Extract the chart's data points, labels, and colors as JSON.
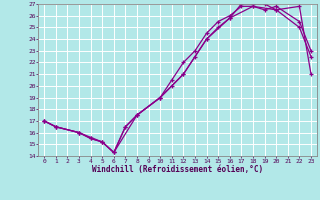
{
  "xlabel": "Windchill (Refroidissement éolien,°C)",
  "bg_color": "#b2e8e8",
  "grid_color": "#ffffff",
  "line_color": "#8b008b",
  "xlim": [
    -0.5,
    23.5
  ],
  "ylim": [
    14,
    27
  ],
  "xticks": [
    0,
    1,
    2,
    3,
    4,
    5,
    6,
    7,
    8,
    9,
    10,
    11,
    12,
    13,
    14,
    15,
    16,
    17,
    18,
    19,
    20,
    21,
    22,
    23
  ],
  "yticks": [
    14,
    15,
    16,
    17,
    18,
    19,
    20,
    21,
    22,
    23,
    24,
    25,
    26,
    27
  ],
  "line1_x": [
    0,
    1,
    3,
    4,
    5,
    6,
    7,
    8,
    10,
    11,
    12,
    13,
    14,
    15,
    16,
    17,
    18,
    19,
    20,
    22,
    23
  ],
  "line1_y": [
    17,
    16.5,
    16,
    15.5,
    15.2,
    14.3,
    16.5,
    17.5,
    19.0,
    20.0,
    21.0,
    22.5,
    24.0,
    25.0,
    25.8,
    27.0,
    27.0,
    27.0,
    26.5,
    25.0,
    22.5
  ],
  "line2_x": [
    0,
    1,
    3,
    4,
    5,
    6,
    7,
    8,
    10,
    11,
    12,
    13,
    14,
    15,
    16,
    17,
    18,
    19,
    20,
    22,
    23
  ],
  "line2_y": [
    17,
    16.5,
    16,
    15.5,
    15.2,
    14.3,
    16.5,
    17.5,
    19.0,
    20.5,
    22.0,
    23.0,
    24.5,
    25.5,
    26.0,
    26.8,
    26.8,
    26.5,
    26.8,
    25.5,
    23.0
  ],
  "line3_x": [
    0,
    1,
    3,
    5,
    6,
    8,
    10,
    12,
    14,
    16,
    18,
    20,
    22,
    23
  ],
  "line3_y": [
    17,
    16.5,
    16,
    15.2,
    14.3,
    17.5,
    19.0,
    21.0,
    24.0,
    25.8,
    26.8,
    26.5,
    26.8,
    21.0
  ]
}
